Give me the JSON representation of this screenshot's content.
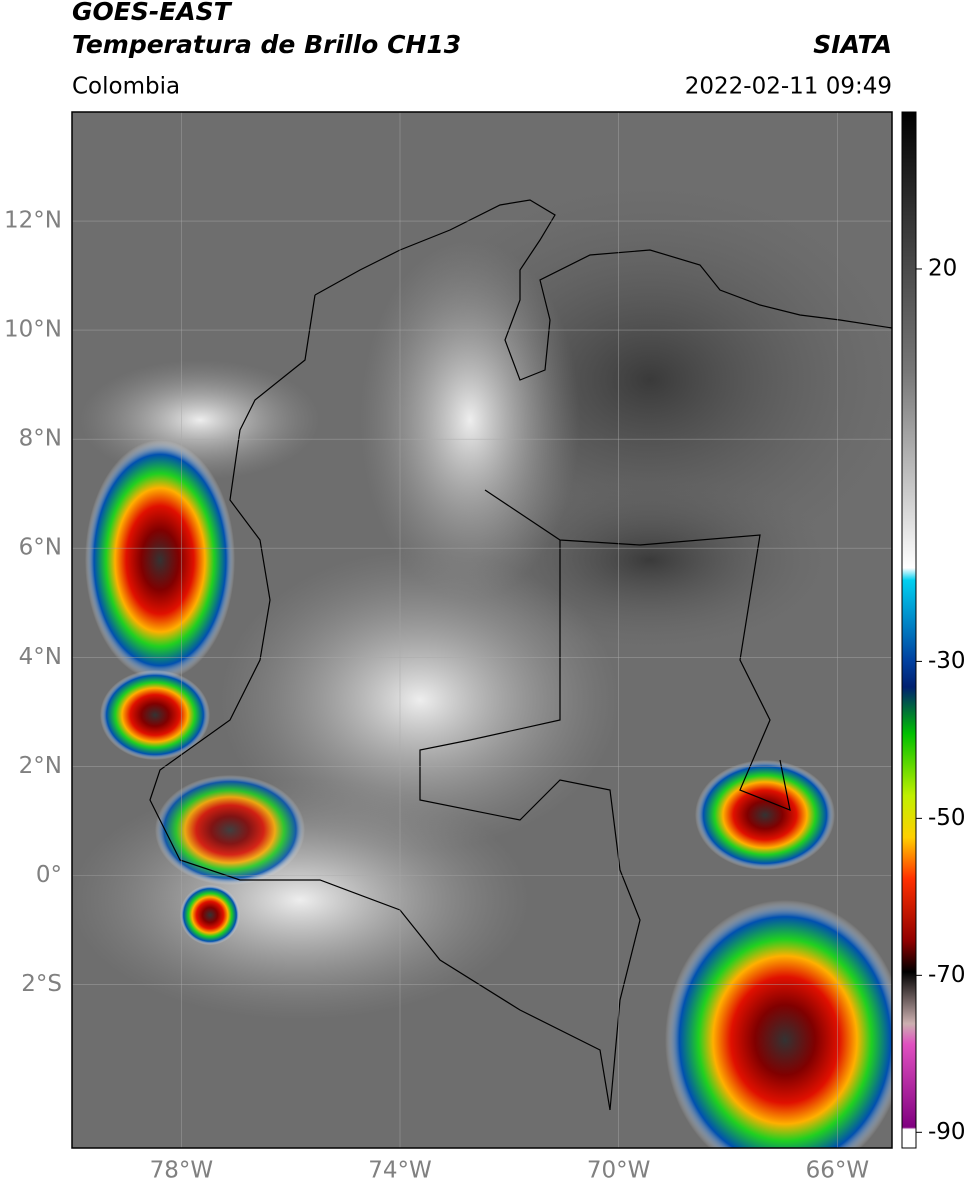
{
  "header": {
    "title": "GOES-EAST",
    "subtitle": "Temperatura de Brillo CH13",
    "source": "SIATA",
    "region": "Colombia",
    "datetime": "2022-02-11 09:49"
  },
  "map": {
    "lonlim": [
      -80,
      -65
    ],
    "latlim": [
      -5,
      14
    ],
    "lonticks": [
      {
        "value": -78,
        "label": "78°W"
      },
      {
        "value": -74,
        "label": "74°W"
      },
      {
        "value": -70,
        "label": "70°W"
      },
      {
        "value": -66,
        "label": "66°W"
      }
    ],
    "latticks": [
      {
        "value": 12,
        "label": "12°N"
      },
      {
        "value": 10,
        "label": "10°N"
      },
      {
        "value": 8,
        "label": "8°N"
      },
      {
        "value": 6,
        "label": "6°N"
      },
      {
        "value": 4,
        "label": "4°N"
      },
      {
        "value": 2,
        "label": "2°N"
      },
      {
        "value": 0,
        "label": "0°"
      },
      {
        "value": -2,
        "label": "2°S"
      }
    ],
    "grid": true
  },
  "colorbar": {
    "lim": [
      -92,
      40
    ],
    "ticks": [
      20,
      -30,
      -50,
      -70,
      -90
    ]
  }
}
